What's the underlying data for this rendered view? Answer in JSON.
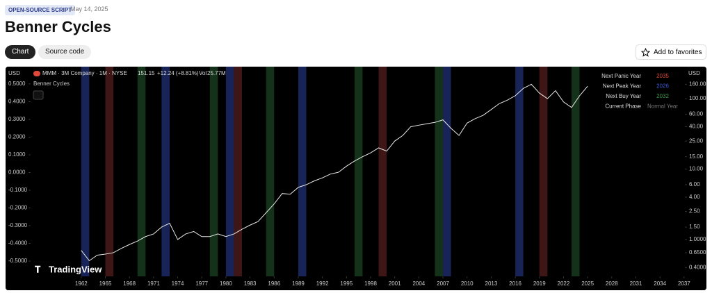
{
  "header": {
    "badge": "OPEN-SOURCE SCRIPT",
    "date": "May 14, 2025",
    "title": "Benner Cycles",
    "tabs": [
      "Chart",
      "Source code"
    ],
    "favorite": "Add to favorites"
  },
  "legend": {
    "symbol": "MMM · 3M Company · 1M · NYSE",
    "price": "151.15",
    "change": "+12.24 (+8.81%)",
    "vol_label": "Vol",
    "vol": "25.77M",
    "indicator": "Benner Cycles",
    "currency_left": "USD",
    "currency_right": "USD",
    "brand": "TradingView"
  },
  "info_table": {
    "rows": [
      [
        "Next Panic Year",
        "2035"
      ],
      [
        "Next Peak Year",
        "2026"
      ],
      [
        "Next Buy Year",
        "2032"
      ],
      [
        "Current Phase",
        "Normal Year"
      ]
    ],
    "colors": [
      "#e0483b",
      "#3b5bd9",
      "#3f9a4a",
      "#777777"
    ]
  },
  "chart_data": {
    "type": "line",
    "x": [
      1962,
      1963,
      1964,
      1965,
      1966,
      1967,
      1968,
      1969,
      1970,
      1971,
      1972,
      1973,
      1974,
      1975,
      1976,
      1977,
      1978,
      1979,
      1980,
      1981,
      1982,
      1983,
      1984,
      1985,
      1986,
      1987,
      1988,
      1989,
      1990,
      1991,
      1992,
      1993,
      1994,
      1995,
      1996,
      1997,
      1998,
      1999,
      2000,
      2001,
      2002,
      2003,
      2004,
      2005,
      2006,
      2007,
      2008,
      2009,
      2010,
      2011,
      2012,
      2013,
      2014,
      2015,
      2016,
      2017,
      2018,
      2019,
      2020,
      2021,
      2022,
      2023,
      2024,
      2025
    ],
    "series": [
      {
        "name": "MMM",
        "color": "#e8e8e8",
        "axis": "y2",
        "values": [
          0.7,
          0.5,
          0.6,
          0.62,
          0.65,
          0.75,
          0.85,
          0.95,
          1.1,
          1.2,
          1.5,
          1.7,
          1.0,
          1.2,
          1.3,
          1.1,
          1.1,
          1.2,
          1.1,
          1.2,
          1.4,
          1.6,
          1.8,
          2.4,
          3.2,
          4.5,
          4.4,
          5.5,
          6,
          6.8,
          7.5,
          8.5,
          9,
          11,
          13,
          15,
          17,
          20,
          18,
          25,
          30,
          40,
          42,
          44,
          46,
          50,
          38,
          30,
          45,
          52,
          58,
          70,
          85,
          95,
          110,
          140,
          160,
          120,
          100,
          130,
          90,
          75,
          110,
          150
        ]
      }
    ],
    "bands": [
      {
        "color": "#1c2a66",
        "years": [
          1962,
          1972,
          1980,
          1989,
          2007,
          2016
        ]
      },
      {
        "color": "#4a1a1a",
        "years": [
          1965,
          1981,
          1999,
          2019
        ]
      },
      {
        "color": "#173a1e",
        "years": [
          1969,
          1978,
          1985,
          1996,
          2006,
          2023
        ]
      }
    ],
    "xlim": [
      1955.7,
      2037.1
    ],
    "xticks": [
      1962,
      1965,
      1968,
      1971,
      1974,
      1977,
      1980,
      1983,
      1986,
      1989,
      1992,
      1995,
      1998,
      2001,
      2004,
      2007,
      2010,
      2013,
      2016,
      2019,
      2022,
      2025,
      2028,
      2031,
      2034,
      2037
    ],
    "ylim": [
      -0.586,
      0.582
    ],
    "yticks": [
      {
        "value": 0.5,
        "label": "0.5000"
      },
      {
        "value": 0.4,
        "label": "0.4000"
      },
      {
        "value": 0.3,
        "label": "0.3000"
      },
      {
        "value": 0.2,
        "label": "0.2000"
      },
      {
        "value": 0.1,
        "label": "0.1000"
      },
      {
        "value": 0,
        "label": "0.0000"
      },
      {
        "value": -0.1,
        "label": "-0.1000"
      },
      {
        "value": -0.2,
        "label": "-0.2000"
      },
      {
        "value": -0.3,
        "label": "-0.3000"
      },
      {
        "value": -0.4,
        "label": "-0.4000"
      },
      {
        "value": -0.5,
        "label": "-0.5000"
      }
    ],
    "y2lim": [
      0.3,
      260
    ],
    "y2_log": true,
    "y2ticks": [
      {
        "value": 160,
        "label": "160.00"
      },
      {
        "value": 100,
        "label": "100.00"
      },
      {
        "value": 60,
        "label": "60.00"
      },
      {
        "value": 40,
        "label": "40.00"
      },
      {
        "value": 25,
        "label": "25.00"
      },
      {
        "value": 15,
        "label": "15.00"
      },
      {
        "value": 10,
        "label": "10.00"
      },
      {
        "value": 6,
        "label": "6.00"
      },
      {
        "value": 4,
        "label": "4.00"
      },
      {
        "value": 2.5,
        "label": "2.50"
      },
      {
        "value": 1.5,
        "label": "1.50"
      },
      {
        "value": 1,
        "label": "1.0000"
      },
      {
        "value": 0.65,
        "label": "0.6500"
      },
      {
        "value": 0.4,
        "label": "0.4000"
      }
    ]
  }
}
